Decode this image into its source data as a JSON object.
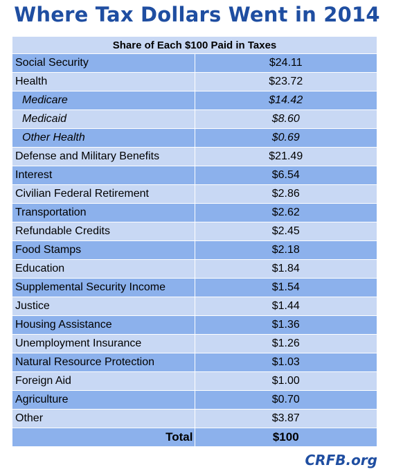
{
  "title": "Where Tax Dollars Went in 2014",
  "table": {
    "header": "Share of Each $100 Paid in Taxes",
    "rows": [
      {
        "label": "Social Security",
        "value": "$24.11",
        "sub": false
      },
      {
        "label": "Health",
        "value": "$23.72",
        "sub": false
      },
      {
        "label": "Medicare",
        "value": "$14.42",
        "sub": true
      },
      {
        "label": "Medicaid",
        "value": "$8.60",
        "sub": true
      },
      {
        "label": "Other Health",
        "value": "$0.69",
        "sub": true
      },
      {
        "label": "Defense and Military Benefits",
        "value": "$21.49",
        "sub": false
      },
      {
        "label": "Interest",
        "value": "$6.54",
        "sub": false
      },
      {
        "label": "Civilian Federal Retirement",
        "value": "$2.86",
        "sub": false
      },
      {
        "label": "Transportation",
        "value": "$2.62",
        "sub": false
      },
      {
        "label": "Refundable Credits",
        "value": "$2.45",
        "sub": false
      },
      {
        "label": "Food Stamps",
        "value": "$2.18",
        "sub": false
      },
      {
        "label": "Education",
        "value": "$1.84",
        "sub": false
      },
      {
        "label": "Supplemental Security Income",
        "value": "$1.54",
        "sub": false
      },
      {
        "label": "Justice",
        "value": "$1.44",
        "sub": false
      },
      {
        "label": "Housing Assistance",
        "value": "$1.36",
        "sub": false
      },
      {
        "label": "Unemployment Insurance",
        "value": "$1.26",
        "sub": false
      },
      {
        "label": "Natural Resource Protection",
        "value": "$1.03",
        "sub": false
      },
      {
        "label": "Foreign Aid",
        "value": "$1.00",
        "sub": false
      },
      {
        "label": "Agriculture",
        "value": "$0.70",
        "sub": false
      },
      {
        "label": "Other",
        "value": "$3.87",
        "sub": false
      }
    ],
    "total": {
      "label": "Total",
      "value": "$100"
    }
  },
  "source": "CRFB.org",
  "colors": {
    "title": "#1f4ea1",
    "row_dark": "#8cb1ec",
    "row_light": "#c8d8f4"
  }
}
